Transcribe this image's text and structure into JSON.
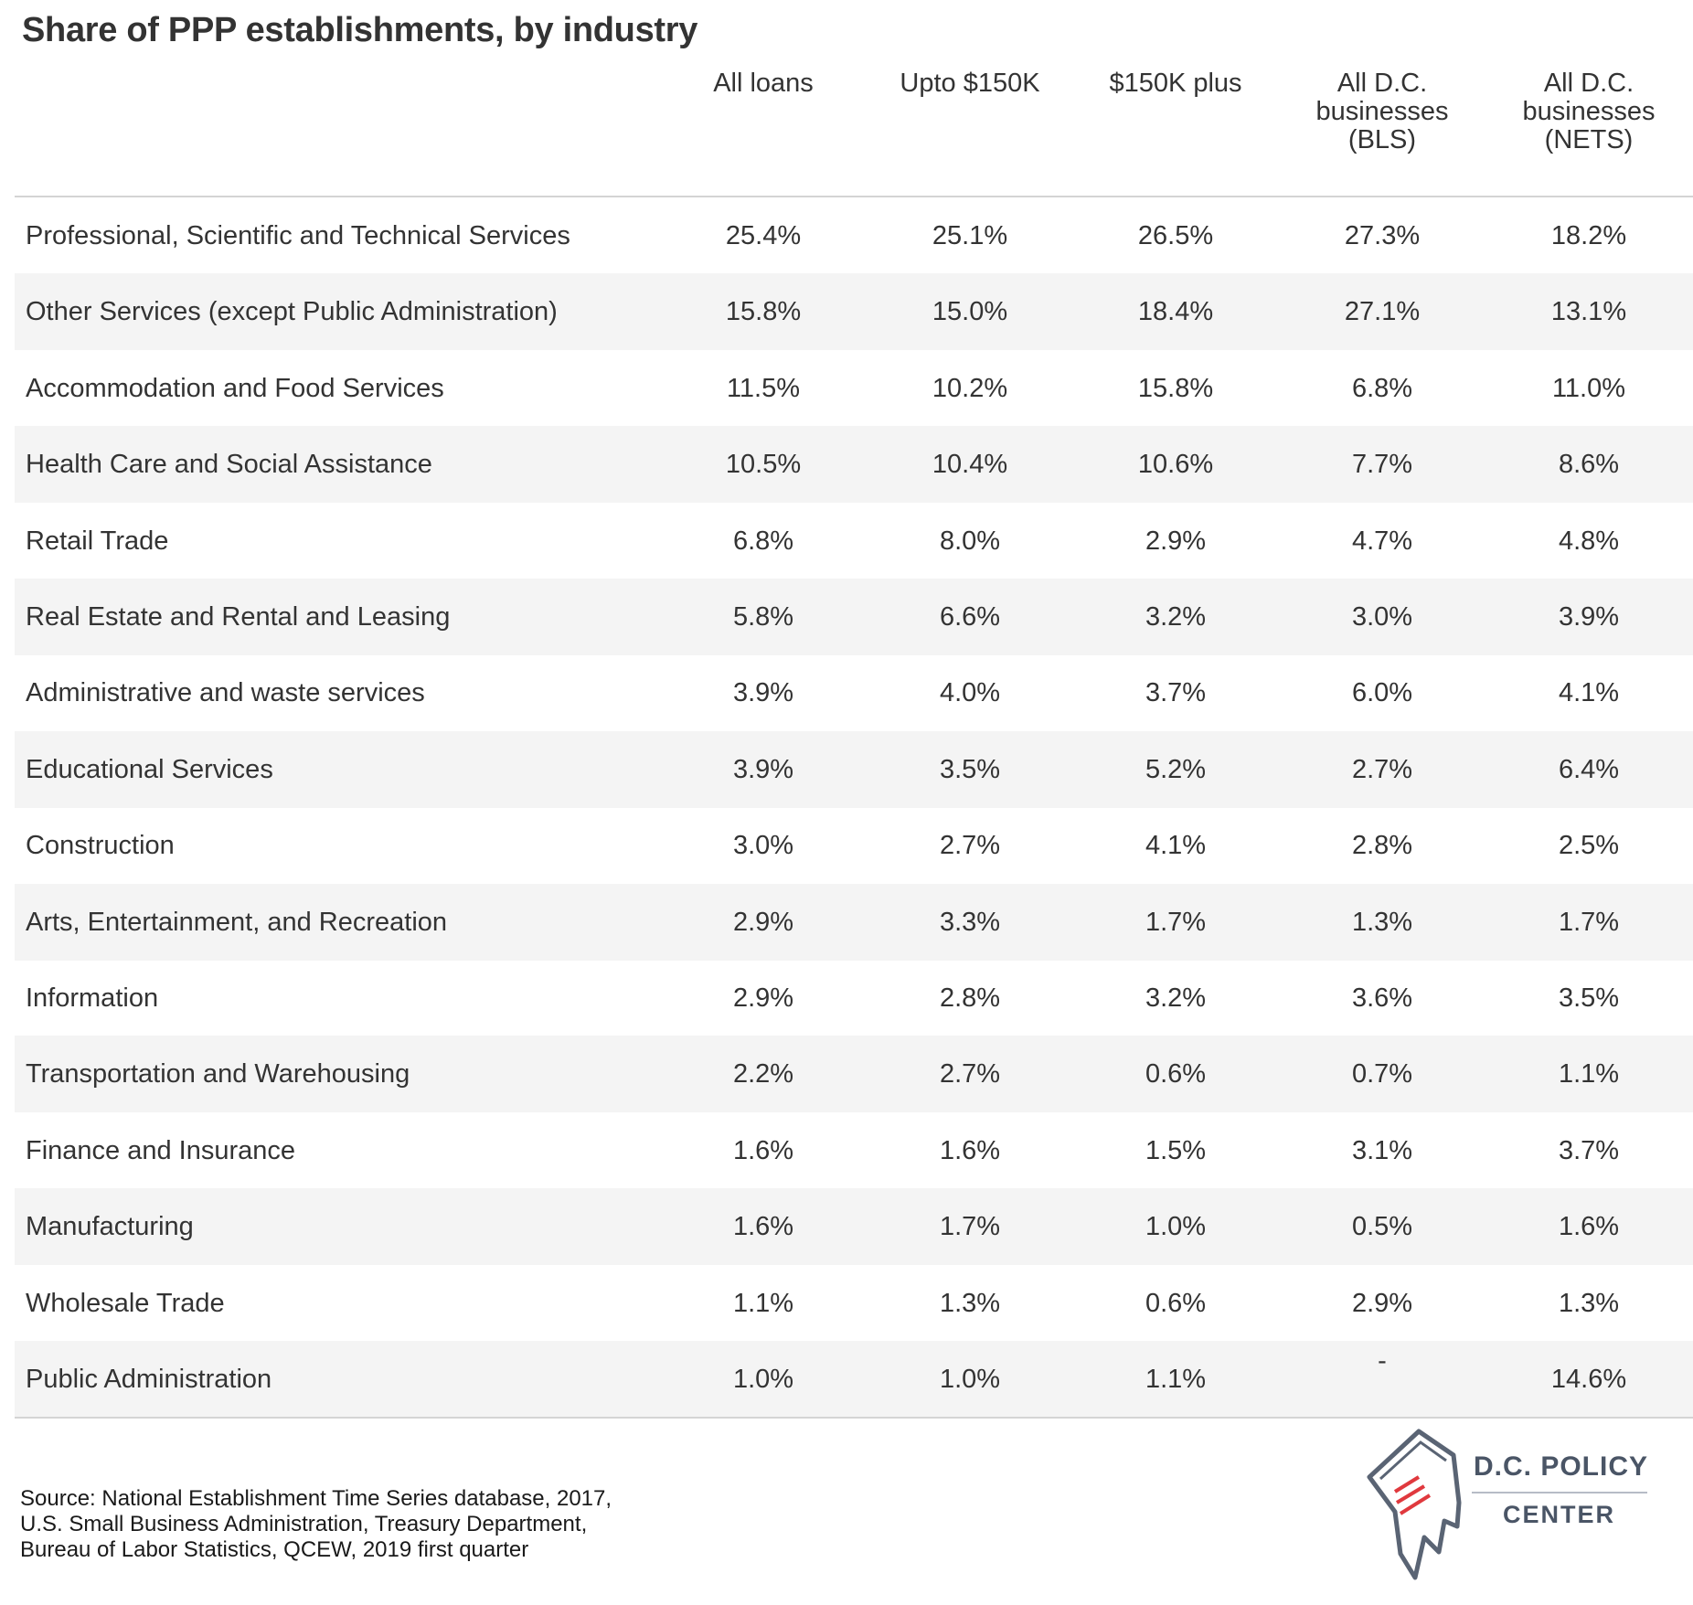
{
  "chart_data": {
    "type": "table",
    "title": "Share of PPP establishments, by industry",
    "columns": [
      [
        "All loans"
      ],
      [
        "Upto $150K"
      ],
      [
        "$150K plus"
      ],
      [
        "All D.C.",
        "businesses",
        "(BLS)"
      ],
      [
        "All D.C.",
        "businesses",
        "(NETS)"
      ]
    ],
    "rows": [
      {
        "label": "Professional, Scientific and Technical Services",
        "values": [
          "25.4%",
          "25.1%",
          "26.5%",
          "27.3%",
          "18.2%"
        ]
      },
      {
        "label": "Other Services (except Public Administration)",
        "values": [
          "15.8%",
          "15.0%",
          "18.4%",
          "27.1%",
          "13.1%"
        ]
      },
      {
        "label": "Accommodation and Food Services",
        "values": [
          "11.5%",
          "10.2%",
          "15.8%",
          "6.8%",
          "11.0%"
        ]
      },
      {
        "label": "Health Care and Social Assistance",
        "values": [
          "10.5%",
          "10.4%",
          "10.6%",
          "7.7%",
          "8.6%"
        ]
      },
      {
        "label": "Retail Trade",
        "values": [
          "6.8%",
          "8.0%",
          "2.9%",
          "4.7%",
          "4.8%"
        ]
      },
      {
        "label": "Real Estate and Rental and Leasing",
        "values": [
          "5.8%",
          "6.6%",
          "3.2%",
          "3.0%",
          "3.9%"
        ]
      },
      {
        "label": "Administrative and waste services",
        "values": [
          "3.9%",
          "4.0%",
          "3.7%",
          "6.0%",
          "4.1%"
        ]
      },
      {
        "label": "Educational Services",
        "values": [
          "3.9%",
          "3.5%",
          "5.2%",
          "2.7%",
          "6.4%"
        ]
      },
      {
        "label": "Construction",
        "values": [
          "3.0%",
          "2.7%",
          "4.1%",
          "2.8%",
          "2.5%"
        ]
      },
      {
        "label": "Arts, Entertainment, and Recreation",
        "values": [
          "2.9%",
          "3.3%",
          "1.7%",
          "1.3%",
          "1.7%"
        ]
      },
      {
        "label": "Information",
        "values": [
          "2.9%",
          "2.8%",
          "3.2%",
          "3.6%",
          "3.5%"
        ]
      },
      {
        "label": "Transportation and Warehousing",
        "values": [
          "2.2%",
          "2.7%",
          "0.6%",
          "0.7%",
          "1.1%"
        ]
      },
      {
        "label": "Finance and Insurance",
        "values": [
          "1.6%",
          "1.6%",
          "1.5%",
          "3.1%",
          "3.7%"
        ]
      },
      {
        "label": "Manufacturing",
        "values": [
          "1.6%",
          "1.7%",
          "1.0%",
          "0.5%",
          "1.6%"
        ]
      },
      {
        "label": "Wholesale Trade",
        "values": [
          "1.1%",
          "1.3%",
          "0.6%",
          "2.9%",
          "1.3%"
        ]
      },
      {
        "label": "Public Administration",
        "values": [
          "1.0%",
          "1.0%",
          "1.1%",
          "-",
          "14.6%"
        ]
      }
    ]
  },
  "source_lines": [
    "Source: National Establishment Time Series database, 2017,",
    "U.S. Small Business Administration, Treasury Department,",
    "Bureau of Labor Statistics, QCEW, 2019 first quarter"
  ],
  "logo": {
    "line1": "D.C. POLICY",
    "line2": "CENTER"
  },
  "colors": {
    "text": "#333333",
    "row_alt": "#f4f4f4",
    "rule": "#d4d4d4",
    "logo_gray": "#4a5566",
    "logo_red": "#e0393e"
  }
}
